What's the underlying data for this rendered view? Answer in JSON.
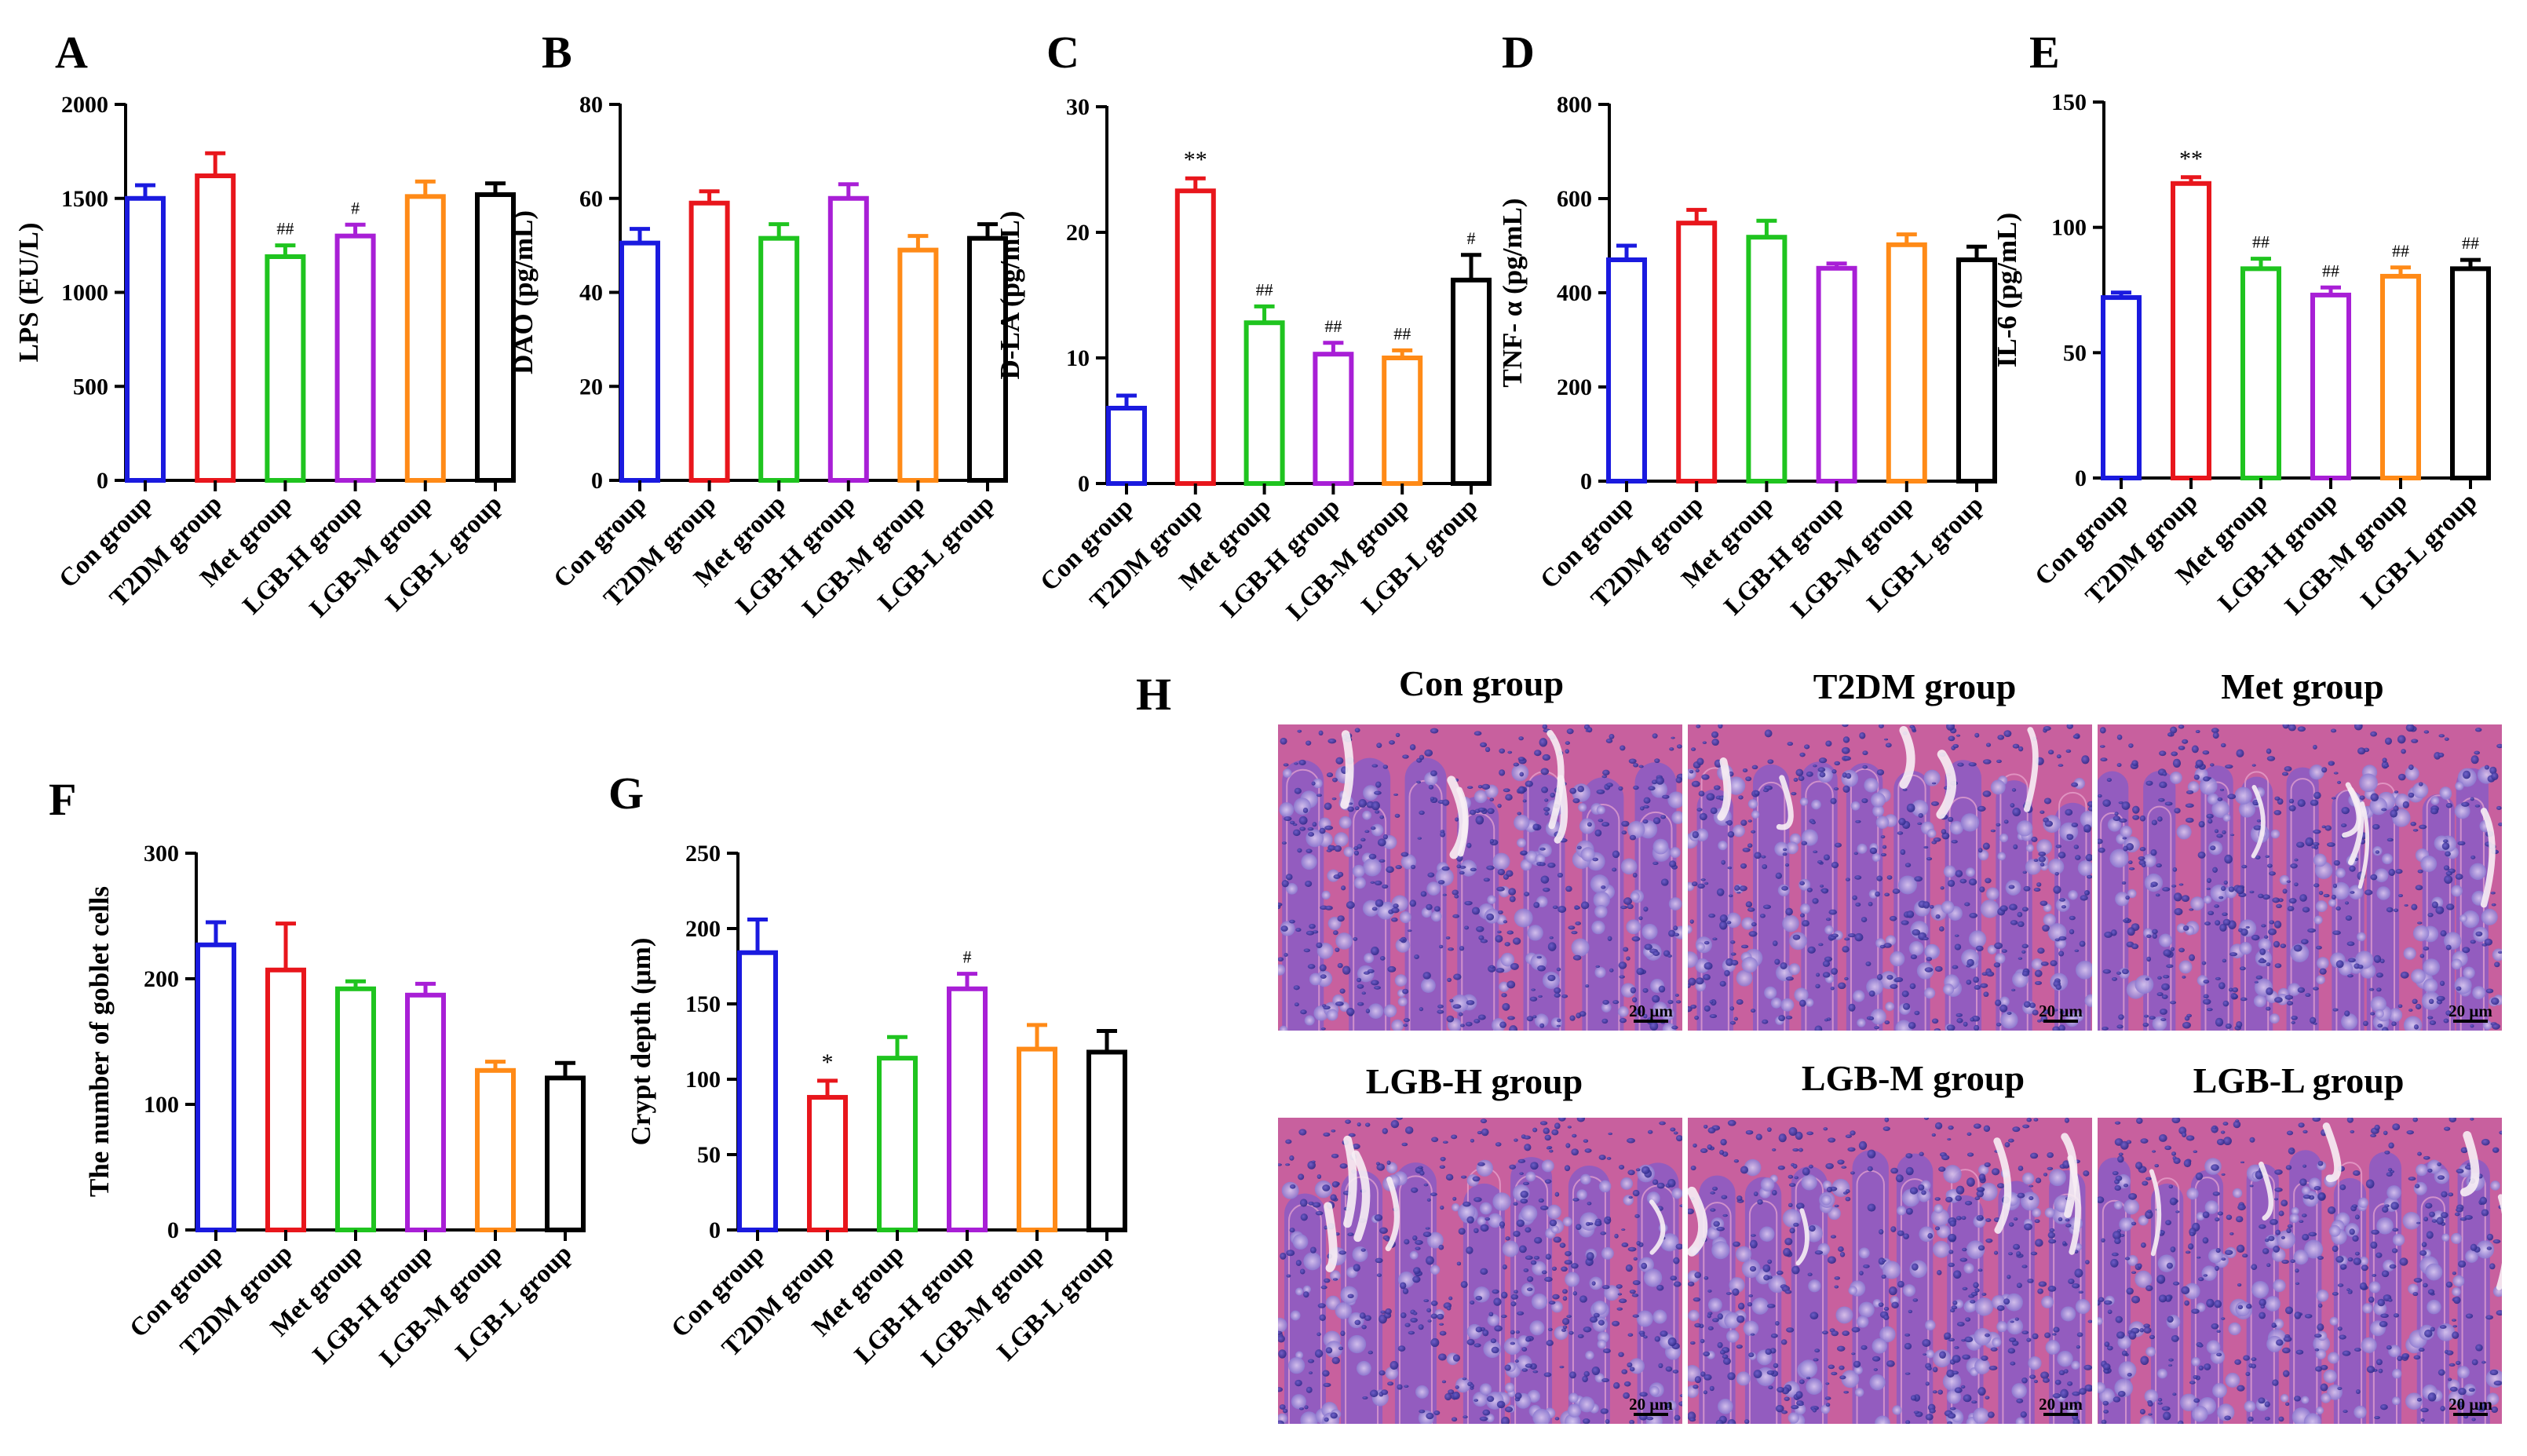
{
  "colors": {
    "Con group": "#1a1adf",
    "T2DM group": "#e8161c",
    "Met group": "#1fc41f",
    "LGB-H group": "#a81fd6",
    "LGB-M group": "#ff8a17",
    "LGB-L group": "#000000"
  },
  "chart_data": [
    {
      "panel": "A",
      "type": "bar",
      "ylabel": "LPS (EU/L)",
      "ylim": [
        0,
        2000
      ],
      "yticks": [
        0,
        500,
        1000,
        1500,
        2000
      ],
      "categories": [
        "Con group",
        "T2DM group",
        "Met group",
        "LGB-H group",
        "LGB-M group",
        "LGB-L group"
      ],
      "values": [
        1500,
        1620,
        1190,
        1300,
        1510,
        1520
      ],
      "errors": [
        70,
        120,
        60,
        60,
        80,
        60
      ],
      "annotations": [
        "",
        "",
        "##",
        "#",
        "",
        ""
      ]
    },
    {
      "panel": "B",
      "type": "bar",
      "ylabel": "DAO (pg/mL)",
      "ylim": [
        0,
        80
      ],
      "yticks": [
        0,
        20,
        40,
        60,
        80
      ],
      "categories": [
        "Con group",
        "T2DM group",
        "Met group",
        "LGB-H group",
        "LGB-M group",
        "LGB-L group"
      ],
      "values": [
        50.5,
        59,
        51.5,
        60,
        49,
        51.5
      ],
      "errors": [
        3,
        2.5,
        3,
        3,
        3,
        3
      ],
      "annotations": [
        "",
        "",
        "",
        "",
        "",
        ""
      ]
    },
    {
      "panel": "C",
      "type": "bar",
      "ylabel": "D-LA (pg/mL)",
      "ylim": [
        0,
        30
      ],
      "yticks": [
        0,
        10,
        20,
        30
      ],
      "categories": [
        "Con group",
        "T2DM group",
        "Met group",
        "LGB-H group",
        "LGB-M group",
        "LGB-L group"
      ],
      "values": [
        6,
        23.3,
        12.8,
        10.3,
        10,
        16.2
      ],
      "errors": [
        1,
        1,
        1.3,
        0.9,
        0.6,
        2
      ],
      "annotations": [
        "",
        "**",
        "##",
        "##",
        "##",
        "#"
      ]
    },
    {
      "panel": "D",
      "type": "bar",
      "ylabel": "TNF- α (pg/mL)",
      "ylim": [
        0,
        800
      ],
      "yticks": [
        0,
        200,
        400,
        600,
        800
      ],
      "categories": [
        "Con group",
        "T2DM group",
        "Met group",
        "LGB-H group",
        "LGB-M group",
        "LGB-L group"
      ],
      "values": [
        470,
        548,
        518,
        452,
        502,
        470
      ],
      "errors": [
        30,
        28,
        35,
        10,
        22,
        28
      ],
      "annotations": [
        "",
        "",
        "",
        "",
        "",
        ""
      ]
    },
    {
      "panel": "E",
      "type": "bar",
      "ylabel": "IL-6 (pg/mL)",
      "ylim": [
        0,
        150
      ],
      "yticks": [
        0,
        50,
        100,
        150
      ],
      "categories": [
        "Con group",
        "T2DM group",
        "Met group",
        "LGB-H group",
        "LGB-M group",
        "LGB-L group"
      ],
      "values": [
        72,
        117.5,
        83.5,
        73,
        80.5,
        83.5
      ],
      "errors": [
        2,
        2.5,
        4,
        3,
        3.5,
        3.5
      ],
      "annotations": [
        "",
        "**",
        "##",
        "##",
        "##",
        "##"
      ]
    },
    {
      "panel": "F",
      "type": "bar",
      "ylabel": "The number of goblet cells",
      "ylim": [
        0,
        300
      ],
      "yticks": [
        0,
        100,
        200,
        300
      ],
      "categories": [
        "Con group",
        "T2DM group",
        "Met group",
        "LGB-H group",
        "LGB-M group",
        "LGB-L group"
      ],
      "values": [
        227,
        207,
        192,
        187,
        127,
        121
      ],
      "errors": [
        18,
        37,
        6,
        9,
        7,
        12
      ],
      "annotations": [
        "",
        "",
        "",
        "",
        "",
        ""
      ]
    },
    {
      "panel": "G",
      "type": "bar",
      "ylabel": "Crypt depth (μm)",
      "ylim": [
        0,
        250
      ],
      "yticks": [
        0,
        50,
        100,
        150,
        200,
        250
      ],
      "categories": [
        "Con group",
        "T2DM group",
        "Met group",
        "LGB-H group",
        "LGB-M group",
        "LGB-L group"
      ],
      "values": [
        184,
        88,
        114,
        160,
        120,
        118
      ],
      "errors": [
        22,
        11,
        14,
        10,
        16,
        14
      ],
      "annotations": [
        "",
        "*",
        "",
        "#",
        "",
        ""
      ]
    }
  ],
  "histology": {
    "panel": "H",
    "scale_bar": "20 μm",
    "images": [
      {
        "title": "Con group"
      },
      {
        "title": "T2DM group"
      },
      {
        "title": "Met group"
      },
      {
        "title": "LGB-H group"
      },
      {
        "title": "LGB-M group"
      },
      {
        "title": "LGB-L group"
      }
    ]
  }
}
